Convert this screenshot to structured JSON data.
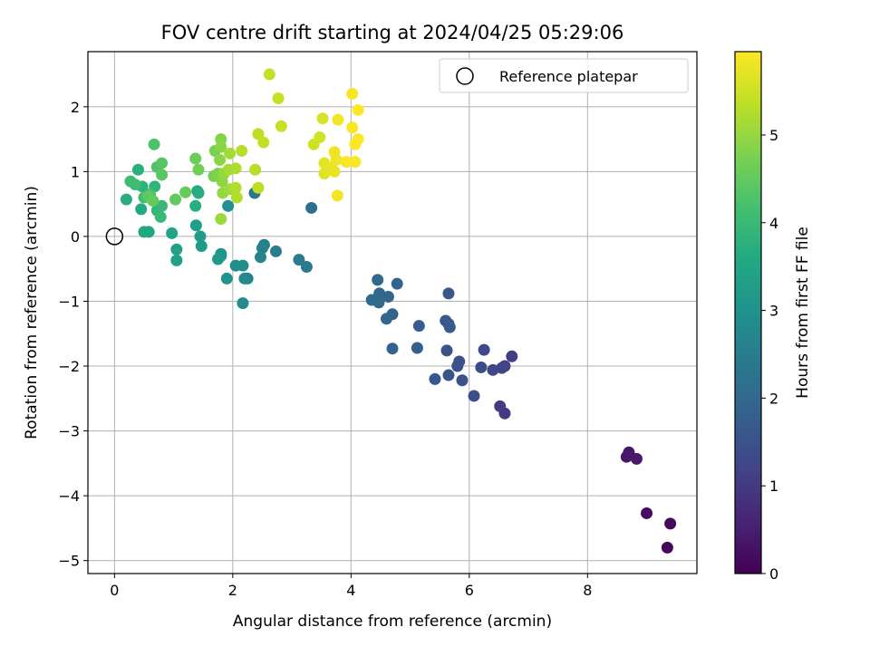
{
  "chart_data": {
    "type": "scatter",
    "title": "FOV centre drift starting at 2024/04/25 05:29:06",
    "xlabel": "Angular distance from reference (arcmin)",
    "ylabel": "Rotation from reference (arcmin)",
    "xlim": [
      -0.45,
      9.85
    ],
    "ylim": [
      -5.2,
      2.85
    ],
    "xticks": [
      0,
      2,
      4,
      6,
      8
    ],
    "yticks": [
      2,
      1,
      0,
      -1,
      -2,
      -3,
      -4,
      -5
    ],
    "xtick_labels": [
      "0",
      "2",
      "4",
      "6",
      "8"
    ],
    "ytick_labels": [
      "2",
      "1",
      "0",
      "−1",
      "−2",
      "−3",
      "−4",
      "−5"
    ],
    "grid": true,
    "legend": {
      "position": "top-right",
      "entries": [
        "Reference platepar"
      ]
    },
    "reference_point": {
      "x": 0,
      "y": 0
    },
    "colorbar": {
      "label": "Hours from first FF file",
      "colormap": "viridis",
      "range": [
        0,
        5.95
      ],
      "ticks": [
        0,
        1,
        2,
        3,
        4,
        5
      ],
      "tick_labels": [
        "0",
        "1",
        "2",
        "3",
        "4",
        "5"
      ]
    },
    "points": [
      {
        "x": 9.35,
        "y": -4.8,
        "c": 0.1
      },
      {
        "x": 9.4,
        "y": -4.43,
        "c": 0.15
      },
      {
        "x": 9.0,
        "y": -4.27,
        "c": 0.2
      },
      {
        "x": 8.66,
        "y": -3.4,
        "c": 0.35
      },
      {
        "x": 8.7,
        "y": -3.33,
        "c": 0.38
      },
      {
        "x": 8.83,
        "y": -3.43,
        "c": 0.42
      },
      {
        "x": 6.6,
        "y": -2.73,
        "c": 1.0
      },
      {
        "x": 6.52,
        "y": -2.62,
        "c": 1.05
      },
      {
        "x": 6.72,
        "y": -1.85,
        "c": 1.1
      },
      {
        "x": 6.6,
        "y": -2.0,
        "c": 1.15
      },
      {
        "x": 6.55,
        "y": -2.03,
        "c": 1.2
      },
      {
        "x": 6.4,
        "y": -2.06,
        "c": 1.25
      },
      {
        "x": 6.25,
        "y": -1.75,
        "c": 1.3
      },
      {
        "x": 6.2,
        "y": -2.02,
        "c": 1.35
      },
      {
        "x": 6.08,
        "y": -2.46,
        "c": 1.4
      },
      {
        "x": 5.88,
        "y": -2.22,
        "c": 1.45
      },
      {
        "x": 5.83,
        "y": -1.93,
        "c": 1.5
      },
      {
        "x": 5.8,
        "y": -2.0,
        "c": 1.5
      },
      {
        "x": 5.65,
        "y": -2.14,
        "c": 1.55
      },
      {
        "x": 5.62,
        "y": -1.76,
        "c": 1.55
      },
      {
        "x": 5.42,
        "y": -2.2,
        "c": 1.6
      },
      {
        "x": 5.65,
        "y": -0.88,
        "c": 1.6
      },
      {
        "x": 5.6,
        "y": -1.3,
        "c": 1.65
      },
      {
        "x": 5.65,
        "y": -1.35,
        "c": 1.65
      },
      {
        "x": 5.67,
        "y": -1.4,
        "c": 1.7
      },
      {
        "x": 5.15,
        "y": -1.38,
        "c": 1.75
      },
      {
        "x": 5.12,
        "y": -1.72,
        "c": 1.8
      },
      {
        "x": 4.7,
        "y": -1.73,
        "c": 1.85
      },
      {
        "x": 4.78,
        "y": -0.73,
        "c": 1.9
      },
      {
        "x": 4.7,
        "y": -1.2,
        "c": 1.9
      },
      {
        "x": 4.6,
        "y": -1.27,
        "c": 1.95
      },
      {
        "x": 4.63,
        "y": -0.93,
        "c": 1.95
      },
      {
        "x": 4.48,
        "y": -0.88,
        "c": 2.0
      },
      {
        "x": 4.45,
        "y": -0.67,
        "c": 2.0
      },
      {
        "x": 4.47,
        "y": -1.02,
        "c": 2.05
      },
      {
        "x": 4.35,
        "y": -0.98,
        "c": 2.05
      },
      {
        "x": 3.33,
        "y": 0.44,
        "c": 2.2
      },
      {
        "x": 2.37,
        "y": 0.67,
        "c": 2.3
      },
      {
        "x": 3.25,
        "y": -0.47,
        "c": 2.4
      },
      {
        "x": 3.12,
        "y": -0.36,
        "c": 2.45
      },
      {
        "x": 2.73,
        "y": -0.23,
        "c": 2.5
      },
      {
        "x": 2.53,
        "y": -0.13,
        "c": 2.55
      },
      {
        "x": 2.5,
        "y": -0.18,
        "c": 2.6
      },
      {
        "x": 2.47,
        "y": -0.32,
        "c": 2.65
      },
      {
        "x": 2.25,
        "y": -0.65,
        "c": 2.7
      },
      {
        "x": 2.2,
        "y": -0.65,
        "c": 2.75
      },
      {
        "x": 2.17,
        "y": -1.03,
        "c": 2.8
      },
      {
        "x": 2.17,
        "y": -0.45,
        "c": 2.85
      },
      {
        "x": 2.05,
        "y": -0.45,
        "c": 2.9
      },
      {
        "x": 1.92,
        "y": 0.47,
        "c": 2.95
      },
      {
        "x": 1.9,
        "y": -0.65,
        "c": 3.0
      },
      {
        "x": 1.8,
        "y": -0.27,
        "c": 3.05
      },
      {
        "x": 1.8,
        "y": -0.3,
        "c": 3.1
      },
      {
        "x": 1.75,
        "y": -0.35,
        "c": 3.15
      },
      {
        "x": 1.47,
        "y": -0.15,
        "c": 3.2
      },
      {
        "x": 1.45,
        "y": 0.0,
        "c": 3.25
      },
      {
        "x": 1.38,
        "y": 0.17,
        "c": 3.3
      },
      {
        "x": 1.05,
        "y": -0.37,
        "c": 3.35
      },
      {
        "x": 1.05,
        "y": -0.2,
        "c": 3.4
      },
      {
        "x": 0.97,
        "y": 0.05,
        "c": 3.45
      },
      {
        "x": 0.58,
        "y": 0.07,
        "c": 3.5
      },
      {
        "x": 0.5,
        "y": 0.07,
        "c": 3.55
      },
      {
        "x": 0.45,
        "y": 0.42,
        "c": 3.6
      },
      {
        "x": 1.4,
        "y": 0.7,
        "c": 3.6
      },
      {
        "x": 1.42,
        "y": 0.67,
        "c": 3.65
      },
      {
        "x": 1.37,
        "y": 0.47,
        "c": 3.7
      },
      {
        "x": 0.2,
        "y": 0.57,
        "c": 3.7
      },
      {
        "x": 0.4,
        "y": 1.03,
        "c": 3.75
      },
      {
        "x": 0.47,
        "y": 0.77,
        "c": 3.8
      },
      {
        "x": 0.68,
        "y": 0.77,
        "c": 3.85
      },
      {
        "x": 0.72,
        "y": 0.4,
        "c": 3.9
      },
      {
        "x": 0.8,
        "y": 0.47,
        "c": 3.95
      },
      {
        "x": 0.78,
        "y": 0.3,
        "c": 4.0
      },
      {
        "x": 0.27,
        "y": 0.85,
        "c": 4.05
      },
      {
        "x": 0.35,
        "y": 0.8,
        "c": 4.1
      },
      {
        "x": 0.5,
        "y": 0.6,
        "c": 4.15
      },
      {
        "x": 0.6,
        "y": 0.65,
        "c": 4.2
      },
      {
        "x": 0.67,
        "y": 1.42,
        "c": 4.25
      },
      {
        "x": 0.72,
        "y": 1.07,
        "c": 4.3
      },
      {
        "x": 0.8,
        "y": 1.13,
        "c": 4.35
      },
      {
        "x": 0.8,
        "y": 0.95,
        "c": 4.4
      },
      {
        "x": 0.57,
        "y": 0.62,
        "c": 4.45
      },
      {
        "x": 0.65,
        "y": 0.55,
        "c": 4.5
      },
      {
        "x": 1.03,
        "y": 0.57,
        "c": 4.5
      },
      {
        "x": 1.2,
        "y": 0.68,
        "c": 4.55
      },
      {
        "x": 1.37,
        "y": 1.2,
        "c": 4.6
      },
      {
        "x": 1.42,
        "y": 1.03,
        "c": 4.65
      },
      {
        "x": 1.68,
        "y": 0.93,
        "c": 4.7
      },
      {
        "x": 1.7,
        "y": 1.32,
        "c": 4.75
      },
      {
        "x": 1.75,
        "y": 0.97,
        "c": 4.8
      },
      {
        "x": 1.8,
        "y": 1.5,
        "c": 4.85
      },
      {
        "x": 1.8,
        "y": 1.38,
        "c": 4.9
      },
      {
        "x": 1.78,
        "y": 1.18,
        "c": 4.9
      },
      {
        "x": 1.82,
        "y": 0.85,
        "c": 4.95
      },
      {
        "x": 1.85,
        "y": 0.97,
        "c": 5.0
      },
      {
        "x": 1.83,
        "y": 0.67,
        "c": 5.0
      },
      {
        "x": 1.8,
        "y": 0.27,
        "c": 5.05
      },
      {
        "x": 1.95,
        "y": 0.73,
        "c": 5.1
      },
      {
        "x": 1.93,
        "y": 1.03,
        "c": 5.15
      },
      {
        "x": 1.95,
        "y": 1.28,
        "c": 5.15
      },
      {
        "x": 2.05,
        "y": 1.05,
        "c": 5.2
      },
      {
        "x": 2.05,
        "y": 0.75,
        "c": 5.25
      },
      {
        "x": 2.07,
        "y": 0.6,
        "c": 5.25
      },
      {
        "x": 2.15,
        "y": 1.32,
        "c": 5.3
      },
      {
        "x": 2.38,
        "y": 1.03,
        "c": 5.3
      },
      {
        "x": 2.43,
        "y": 0.75,
        "c": 5.35
      },
      {
        "x": 2.43,
        "y": 1.58,
        "c": 5.35
      },
      {
        "x": 2.52,
        "y": 1.45,
        "c": 5.4
      },
      {
        "x": 2.62,
        "y": 2.5,
        "c": 5.4
      },
      {
        "x": 2.77,
        "y": 2.13,
        "c": 5.45
      },
      {
        "x": 2.82,
        "y": 1.7,
        "c": 5.45
      },
      {
        "x": 3.37,
        "y": 1.42,
        "c": 5.5
      },
      {
        "x": 3.47,
        "y": 1.53,
        "c": 5.55
      },
      {
        "x": 3.52,
        "y": 1.82,
        "c": 5.6
      },
      {
        "x": 3.55,
        "y": 0.97,
        "c": 5.65
      },
      {
        "x": 3.55,
        "y": 1.13,
        "c": 5.7
      },
      {
        "x": 3.65,
        "y": 1.05,
        "c": 5.75
      },
      {
        "x": 3.72,
        "y": 1.0,
        "c": 5.75
      },
      {
        "x": 3.72,
        "y": 1.3,
        "c": 5.8
      },
      {
        "x": 3.75,
        "y": 1.18,
        "c": 5.8
      },
      {
        "x": 3.77,
        "y": 0.63,
        "c": 5.85
      },
      {
        "x": 3.78,
        "y": 1.8,
        "c": 5.85
      },
      {
        "x": 3.92,
        "y": 1.15,
        "c": 5.9
      },
      {
        "x": 4.02,
        "y": 1.68,
        "c": 5.9
      },
      {
        "x": 4.02,
        "y": 2.2,
        "c": 5.9
      },
      {
        "x": 4.07,
        "y": 1.42,
        "c": 5.92
      },
      {
        "x": 4.07,
        "y": 1.15,
        "c": 5.93
      },
      {
        "x": 4.12,
        "y": 1.5,
        "c": 5.93
      },
      {
        "x": 4.12,
        "y": 1.95,
        "c": 5.95
      }
    ]
  }
}
